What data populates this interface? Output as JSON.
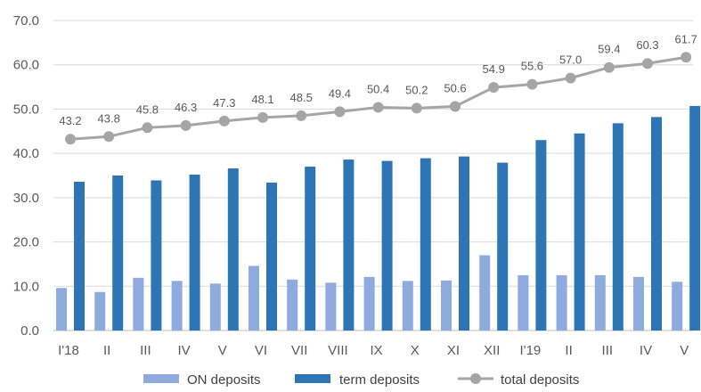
{
  "chart_data": {
    "type": "bar",
    "categories": [
      "I'18",
      "II",
      "III",
      "IV",
      "V",
      "VI",
      "VII",
      "VIII",
      "IX",
      "X",
      "XI",
      "XII",
      "I'19",
      "II",
      "III",
      "IV",
      "V"
    ],
    "series": [
      {
        "name": "ON deposits",
        "type": "bar",
        "color": "#8FAADC",
        "values": [
          9.6,
          8.7,
          11.9,
          11.2,
          10.6,
          14.6,
          11.5,
          10.8,
          12.1,
          11.2,
          11.3,
          17.0,
          12.5,
          12.5,
          12.5,
          12.1,
          11.0
        ]
      },
      {
        "name": "term deposits",
        "type": "bar",
        "color": "#2E75B6",
        "values": [
          33.6,
          35.0,
          33.9,
          35.2,
          36.6,
          33.4,
          37.0,
          38.6,
          38.3,
          38.9,
          39.3,
          37.9,
          43.0,
          44.5,
          46.8,
          48.2,
          50.7
        ]
      },
      {
        "name": "total deposits",
        "type": "line",
        "color": "#A5A5A5",
        "values": [
          43.2,
          43.8,
          45.8,
          46.3,
          47.3,
          48.1,
          48.5,
          49.4,
          50.4,
          50.2,
          50.6,
          54.9,
          55.6,
          57.0,
          59.4,
          60.3,
          61.7
        ],
        "labels": [
          "43.2",
          "43.8",
          "45.8",
          "46.3",
          "47.3",
          "48.1",
          "48.5",
          "49.4",
          "50.4",
          "50.2",
          "50.6",
          "54.9",
          "55.6",
          "57.0",
          "59.4",
          "60.3",
          "61.7"
        ]
      }
    ],
    "ylim": [
      0,
      70
    ],
    "yticks": [
      "0.0",
      "10.0",
      "20.0",
      "30.0",
      "40.0",
      "50.0",
      "60.0",
      "70.0"
    ],
    "grid": "horizontal",
    "legend": "bottom",
    "title": "",
    "xlabel": "",
    "ylabel": ""
  }
}
